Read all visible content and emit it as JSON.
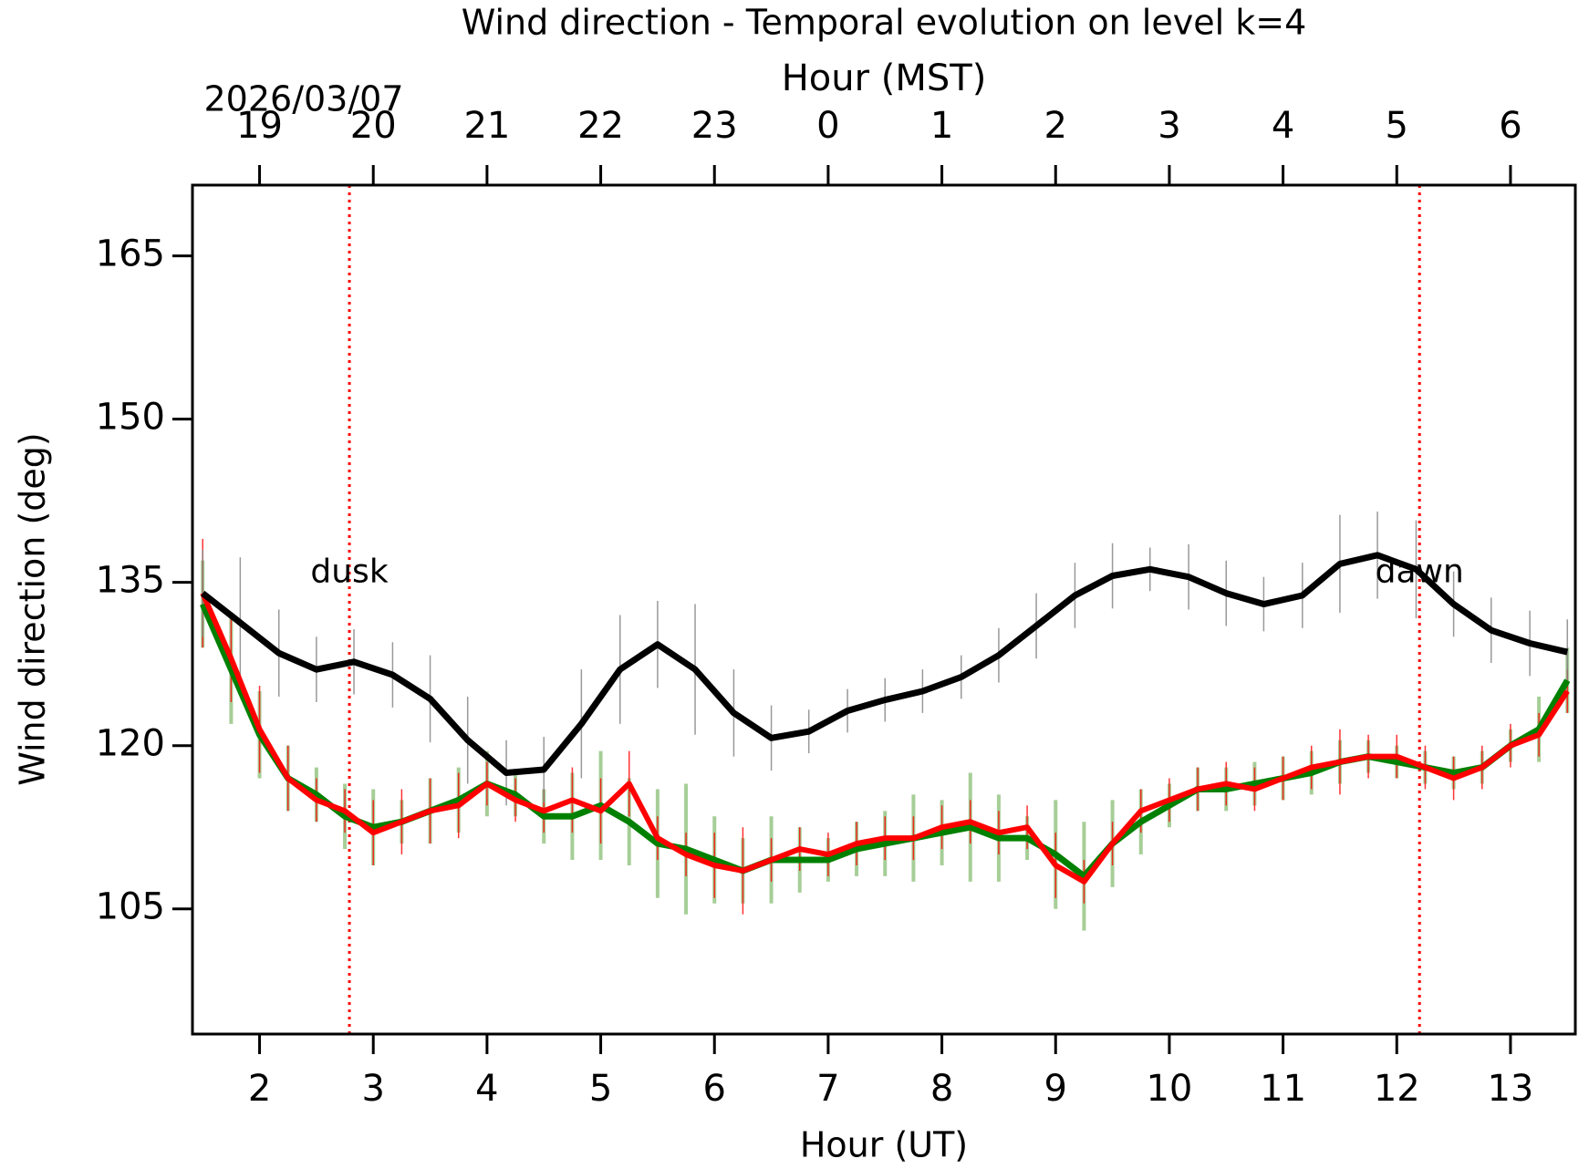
{
  "chart_data": {
    "type": "line",
    "title": "Wind direction - Temporal evolution on level k=4",
    "xlabel": "Hour (UT)",
    "x2label": "Hour (MST)",
    "ylabel": "Wind direction (deg)",
    "date_label": "2026/03/07",
    "xlim": [
      1.41,
      13.57
    ],
    "xticks": [
      2,
      3,
      4,
      5,
      6,
      7,
      8,
      9,
      10,
      11,
      12,
      13
    ],
    "x2ticks": [
      {
        "value": 2,
        "label": "19"
      },
      {
        "value": 3,
        "label": "20"
      },
      {
        "value": 4,
        "label": "21"
      },
      {
        "value": 5,
        "label": "22"
      },
      {
        "value": 6,
        "label": "23"
      },
      {
        "value": 7,
        "label": "0"
      },
      {
        "value": 8,
        "label": "1"
      },
      {
        "value": 9,
        "label": "2"
      },
      {
        "value": 10,
        "label": "3"
      },
      {
        "value": 11,
        "label": "4"
      },
      {
        "value": 12,
        "label": "5"
      },
      {
        "value": 13,
        "label": "6"
      }
    ],
    "ylim": [
      93.5,
      171.5
    ],
    "yticks": [
      105,
      120,
      135,
      150,
      165
    ],
    "vlines": [
      {
        "x": 2.79,
        "label": "dusk",
        "color": "#ff0000"
      },
      {
        "x": 12.2,
        "label": "dawn",
        "color": "#ff0000"
      }
    ],
    "series": [
      {
        "color": "#008000",
        "errcolor": "#6aad52",
        "width": 7,
        "x": [
          1.5,
          1.75,
          2,
          2.25,
          2.5,
          2.75,
          3,
          3.25,
          3.5,
          3.75,
          4,
          4.25,
          4.5,
          4.75,
          5,
          5.25,
          5.5,
          5.75,
          6,
          6.25,
          6.5,
          6.75,
          7,
          7.25,
          7.5,
          7.75,
          8,
          8.25,
          8.5,
          8.75,
          9,
          9.25,
          9.5,
          9.75,
          10,
          10.25,
          10.5,
          10.75,
          11,
          11.25,
          11.5,
          11.75,
          12,
          12.25,
          12.5,
          12.75,
          13,
          13.25,
          13.5
        ],
        "values": [
          133,
          127,
          121,
          117,
          115.5,
          113.5,
          112.5,
          113,
          114,
          115,
          116.5,
          115.5,
          113.5,
          113.5,
          114.5,
          113,
          111,
          110.5,
          109.5,
          108.5,
          109.5,
          109.5,
          109.5,
          110.5,
          111,
          111.5,
          112,
          112.5,
          111.5,
          111.5,
          110,
          108,
          111,
          113,
          114.5,
          116,
          116,
          116.5,
          117,
          117.5,
          118.5,
          119,
          118.5,
          118,
          117.5,
          118,
          120,
          121.5,
          126
        ],
        "errors": [
          4,
          5,
          4,
          3,
          2.5,
          3,
          3.5,
          2,
          3,
          3,
          3,
          2,
          2.5,
          4,
          5,
          4,
          5,
          6,
          4,
          3,
          4,
          3,
          2,
          2.5,
          3,
          4,
          3,
          5,
          4,
          2,
          5,
          5,
          4,
          3,
          2,
          2,
          2,
          2,
          2,
          2,
          2,
          1.5,
          1.5,
          1.5,
          1.5,
          1.5,
          1.5,
          3,
          3
        ]
      },
      {
        "color": "#ff0000",
        "errcolor": "#ff0000",
        "width": 6,
        "x": [
          1.5,
          1.75,
          2,
          2.25,
          2.5,
          2.75,
          3,
          3.25,
          3.5,
          3.75,
          4,
          4.25,
          4.5,
          4.75,
          5,
          5.25,
          5.5,
          5.75,
          6,
          6.25,
          6.5,
          6.75,
          7,
          7.25,
          7.5,
          7.75,
          8,
          8.25,
          8.5,
          8.75,
          9,
          9.25,
          9.5,
          9.75,
          10,
          10.25,
          10.5,
          10.75,
          11,
          11.25,
          11.5,
          11.75,
          12,
          12.25,
          12.5,
          12.75,
          13,
          13.25,
          13.5
        ],
        "values": [
          134,
          128,
          121.5,
          117,
          115,
          114,
          112,
          113,
          114,
          114.5,
          116.5,
          115,
          114,
          115,
          114,
          116.5,
          111.5,
          110,
          109,
          108.5,
          109.5,
          110.5,
          110,
          111,
          111.5,
          111.5,
          112.5,
          113,
          112,
          112.5,
          109,
          107.5,
          111,
          114,
          115,
          116,
          116.5,
          116,
          117,
          118,
          118.5,
          119,
          119,
          118,
          117,
          118,
          120,
          121,
          125
        ],
        "errors": [
          5,
          4,
          4,
          3,
          2,
          2,
          3,
          3,
          3,
          3,
          2,
          2,
          2,
          3,
          3,
          3,
          2,
          2,
          3,
          4,
          2,
          2,
          2,
          2,
          2,
          2,
          2,
          2,
          2,
          2,
          3,
          2,
          2,
          2,
          2,
          2,
          2,
          2,
          2,
          2,
          3,
          2,
          2,
          2,
          2,
          2,
          2,
          2,
          2
        ]
      },
      {
        "color": "#000000",
        "errcolor": "#808080",
        "width": 7,
        "x": [
          1.5,
          1.83,
          2.17,
          2.5,
          2.83,
          3.17,
          3.5,
          3.83,
          4.17,
          4.5,
          4.83,
          5.17,
          5.5,
          5.83,
          6.17,
          6.5,
          6.83,
          7.17,
          7.5,
          7.83,
          8.17,
          8.5,
          8.83,
          9.17,
          9.5,
          9.83,
          10.17,
          10.5,
          10.83,
          11.17,
          11.5,
          11.83,
          12.17,
          12.5,
          12.83,
          13.17,
          13.5
        ],
        "values": [
          134,
          131.3,
          128.5,
          127,
          127.7,
          126.5,
          124.3,
          120.5,
          117.5,
          117.8,
          122,
          127,
          129.3,
          127,
          123,
          120.7,
          121.3,
          123.2,
          124.2,
          125,
          126.3,
          128.3,
          131,
          133.8,
          135.6,
          136.2,
          135.5,
          134,
          133,
          133.8,
          136.7,
          137.5,
          136.2,
          133,
          130.6,
          129.4,
          128.6
        ],
        "errors": [
          4,
          6,
          4,
          3,
          3,
          3,
          4,
          4,
          3,
          3,
          5,
          5,
          4,
          6,
          4,
          3,
          2,
          2,
          2,
          2,
          2,
          2.5,
          3,
          3,
          3,
          2,
          3,
          3,
          2.5,
          3,
          4.5,
          4,
          4.5,
          3,
          3,
          3,
          3
        ]
      }
    ]
  }
}
